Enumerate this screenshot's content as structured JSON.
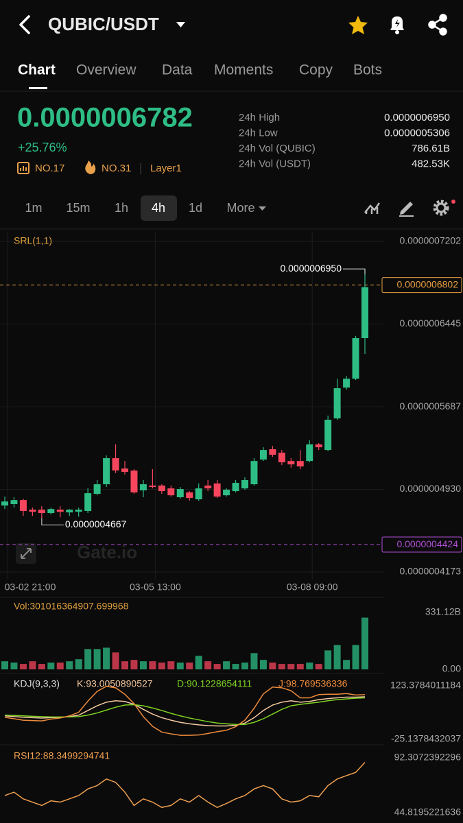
{
  "header": {
    "title": "QUBIC/USDT"
  },
  "tabs": [
    "Chart",
    "Overview",
    "Data",
    "Moments",
    "Copy",
    "Bots"
  ],
  "ticker": {
    "price": "0.0000006782",
    "change": "+25.76%",
    "badges": [
      "NO.17",
      "NO.31",
      "Layer1"
    ]
  },
  "stats": [
    {
      "label": "24h High",
      "value": "0.0000006950"
    },
    {
      "label": "24h Low",
      "value": "0.0000005306"
    },
    {
      "label": "24h Vol (QUBIC)",
      "value": "786.61B"
    },
    {
      "label": "24h Vol (USDT)",
      "value": "482.53K"
    }
  ],
  "intervals": [
    "1m",
    "15m",
    "1h",
    "4h",
    "1d",
    "More"
  ],
  "watermark": "Gate.io",
  "chart_data": [
    {
      "type": "candlestick",
      "title": "SRL(1,1)",
      "categories": [
        "03-02 21:00",
        null,
        null,
        null,
        null,
        null,
        null,
        null,
        null,
        null,
        null,
        null,
        null,
        null,
        null,
        null,
        "03-05 13:00",
        null,
        null,
        null,
        null,
        null,
        null,
        null,
        null,
        null,
        null,
        null,
        null,
        null,
        null,
        null,
        null,
        "03-08 09:00",
        null,
        null,
        null,
        null,
        null,
        null
      ],
      "open": [
        4.782e-07,
        4.795e-07,
        4.832e-07,
        4.744e-07,
        4.744e-07,
        4.713e-07,
        4.744e-07,
        4.719e-07,
        4.725e-07,
        4.732e-07,
        4.889e-07,
        4.977e-07,
        5.216e-07,
        5.121e-07,
        5.102e-07,
        4.921e-07,
        4.965e-07,
        4.965e-07,
        4.939e-07,
        4.858e-07,
        4.902e-07,
        4.839e-07,
        4.965e-07,
        4.984e-07,
        4.876e-07,
        4.914e-07,
        4.939e-07,
        4.977e-07,
        5.203e-07,
        5.298e-07,
        5.266e-07,
        5.19e-07,
        5.19e-07,
        5.19e-07,
        5.342e-07,
        5.291e-07,
        5.58e-07,
        5.863e-07,
        5.944e-07,
        6.316e-07
      ],
      "high": [
        4.864e-07,
        4.858e-07,
        4.845e-07,
        4.763e-07,
        4.776e-07,
        4.763e-07,
        4.776e-07,
        4.75e-07,
        4.763e-07,
        4.939e-07,
        5.015e-07,
        5.241e-07,
        5.342e-07,
        5.19e-07,
        5.115e-07,
        5.015e-07,
        5.115e-07,
        4.977e-07,
        4.965e-07,
        4.952e-07,
        4.914e-07,
        4.984e-07,
        5.015e-07,
        5.015e-07,
        4.939e-07,
        5.015e-07,
        5.04e-07,
        5.216e-07,
        5.316e-07,
        5.329e-07,
        5.291e-07,
        5.216e-07,
        5.291e-07,
        5.38e-07,
        5.354e-07,
        5.606e-07,
        5.944e-07,
        5.969e-07,
        6.335e-07,
        6.95e-07
      ],
      "low": [
        4.75e-07,
        4.763e-07,
        4.687e-07,
        4.687e-07,
        4.667e-07,
        4.7e-07,
        4.675e-07,
        4.687e-07,
        4.68e-07,
        4.713e-07,
        4.876e-07,
        4.952e-07,
        5.078e-07,
        5.065e-07,
        4.889e-07,
        4.858e-07,
        4.939e-07,
        4.889e-07,
        4.864e-07,
        4.845e-07,
        4.826e-07,
        4.826e-07,
        4.914e-07,
        4.851e-07,
        4.864e-07,
        4.902e-07,
        4.927e-07,
        4.965e-07,
        5.19e-07,
        5.228e-07,
        5.153e-07,
        5.128e-07,
        5.115e-07,
        5.178e-07,
        5.291e-07,
        5.279e-07,
        5.567e-07,
        5.844e-07,
        5.932e-07,
        6.171e-07
      ],
      "close": [
        4.819e-07,
        4.832e-07,
        4.732e-07,
        4.725e-07,
        4.713e-07,
        4.75e-07,
        4.725e-07,
        4.744e-07,
        4.744e-07,
        4.895e-07,
        4.977e-07,
        5.216e-07,
        5.103e-07,
        5.09e-07,
        4.902e-07,
        4.977e-07,
        4.952e-07,
        4.914e-07,
        4.876e-07,
        4.933e-07,
        4.851e-07,
        4.939e-07,
        4.939e-07,
        4.864e-07,
        4.927e-07,
        4.99e-07,
        5.015e-07,
        5.19e-07,
        5.291e-07,
        5.247e-07,
        5.178e-07,
        5.159e-07,
        5.14e-07,
        5.342e-07,
        5.316e-07,
        5.568e-07,
        5.857e-07,
        5.944e-07,
        6.316e-07,
        6.782e-07
      ],
      "up_color": "#2ebd85",
      "down_color": "#f6465d",
      "ylim": [
        4.173e-07,
        7.202e-07
      ],
      "yticks": [
        {
          "value": 7.202e-07,
          "label": "0.0000007202"
        },
        {
          "value": 6.445e-07,
          "label": "0.0000006445"
        },
        {
          "value": 5.687e-07,
          "label": "0.0000005687"
        },
        {
          "value": 4.93e-07,
          "label": "0.0000004930"
        },
        {
          "value": 4.173e-07,
          "label": "0.0000004173"
        }
      ],
      "max_label": "0.0000006950",
      "min_label": "0.0000004667",
      "price_lines": [
        {
          "value": 6.802e-07,
          "label": "0.0000006802",
          "color": "#e8a040"
        },
        {
          "value": 4.424e-07,
          "label": "0.0000004424",
          "color": "#b14fd6"
        }
      ],
      "grid": true
    },
    {
      "type": "bar",
      "title": "Vol:301016364907.699968",
      "values": [
        47300000000.0,
        39400000000.0,
        31500000000.0,
        47300000000.0,
        31500000000.0,
        39400000000.0,
        39400000000.0,
        47300000000.0,
        59100000000.0,
        118200000000.0,
        118200000000.0,
        126100000000.0,
        98500000000.0,
        47300000000.0,
        55200000000.0,
        47300000000.0,
        47300000000.0,
        39400000000.0,
        47300000000.0,
        39400000000.0,
        39400000000.0,
        78800000000.0,
        47300000000.0,
        31500000000.0,
        47300000000.0,
        31500000000.0,
        39400000000.0,
        94600000000.0,
        55200000000.0,
        39400000000.0,
        31500000000.0,
        31500000000.0,
        31500000000.0,
        39400000000.0,
        31500000000.0,
        110300000000.0,
        141800000000.0,
        55200000000.0,
        141800000000.0,
        301016364907.69995
      ],
      "ylim": [
        0,
        331120000000
      ],
      "yticks": [
        {
          "value": 331120000000,
          "label": "331.12B"
        },
        {
          "value": 0,
          "label": "0.00"
        }
      ]
    },
    {
      "type": "line",
      "title": "KDJ(9,3,3)",
      "series": [
        {
          "name": "K:93.0050890527",
          "color": "#f5c9a0",
          "values": [
            40,
            38,
            36,
            35,
            34,
            35,
            36,
            38,
            42,
            55,
            68,
            78,
            82,
            80,
            72,
            58,
            45,
            35,
            28,
            22,
            18,
            15,
            13,
            12,
            12,
            14,
            20,
            35,
            55,
            70,
            78,
            82,
            78,
            80,
            85,
            88,
            90,
            92,
            92,
            93.0050890527
          ]
        },
        {
          "name": "D:90.1228654111",
          "color": "#7ed321",
          "values": [
            42,
            41,
            40,
            39,
            38,
            37,
            37,
            37,
            38,
            42,
            48,
            56,
            64,
            70,
            71,
            68,
            62,
            55,
            47,
            40,
            34,
            29,
            24,
            20,
            18,
            16,
            16,
            22,
            32,
            45,
            58,
            68,
            72,
            75,
            78,
            82,
            85,
            87,
            89,
            90.1228654111
          ]
        },
        {
          "name": "J:98.769536336",
          "color": "#f08c3c",
          "values": [
            36,
            32,
            28,
            27,
            26,
            31,
            34,
            40,
            50,
            81,
            108,
            122,
            118,
            100,
            74,
            38,
            11,
            -5,
            -10,
            -14,
            -14,
            -13,
            -9,
            -4,
            0,
            10,
            28,
            61,
            101,
            120,
            118,
            110,
            90,
            90,
            99,
            100,
            100,
            102,
            98,
            98.769536336
          ]
        }
      ],
      "ylim": [
        -25.1378432037,
        123.3784011184
      ],
      "yticks": [
        123.3784011184,
        -25.1378432037
      ]
    },
    {
      "type": "line",
      "series": [
        {
          "name": "RSI12:88.3499294741",
          "color": "#f0a050",
          "values": [
            59.7,
            62.6,
            56.8,
            54.0,
            51.1,
            55.1,
            54.0,
            56.8,
            59.7,
            65.4,
            68.3,
            74.0,
            71.1,
            62.6,
            51.1,
            56.8,
            54.0,
            49.4,
            51.1,
            56.8,
            54.0,
            59.7,
            54.0,
            49.4,
            52.8,
            56.8,
            59.7,
            65.4,
            68.3,
            65.4,
            56.8,
            54.0,
            55.1,
            59.7,
            58.6,
            68.3,
            74.0,
            76.9,
            79.7,
            88.3499294741
          ]
        }
      ],
      "ylim": [
        44.8195221636,
        92.3072392296
      ],
      "yticks": [
        92.3072392296,
        44.8195221636
      ]
    }
  ]
}
